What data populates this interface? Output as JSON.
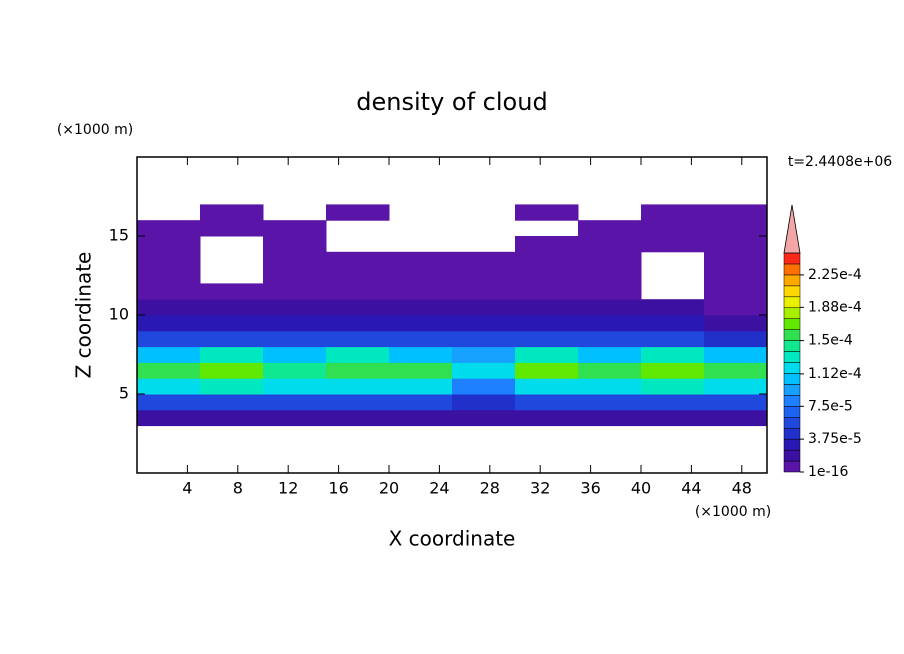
{
  "chart_data": {
    "type": "contour",
    "title": "density of cloud",
    "x_label": "X coordinate",
    "y_label": "Z coordinate",
    "x_unit": "(×1000 m)",
    "y_unit": "(×1000 m)",
    "annotation": "t=2.4408e+06",
    "xlim": [
      0,
      50
    ],
    "ylim": [
      0,
      20
    ],
    "xticks": [
      4,
      8,
      12,
      16,
      20,
      24,
      28,
      32,
      36,
      40,
      44,
      48
    ],
    "yticks": [
      5,
      10,
      15
    ],
    "x": [
      2.5,
      7.5,
      12.5,
      17.5,
      22.5,
      27.5,
      32.5,
      37.5,
      42.5,
      47.5
    ],
    "y": [
      0.5,
      1.5,
      2.5,
      3.5,
      4.5,
      5.5,
      6.5,
      7.5,
      8.5,
      9.5,
      10.5,
      11.5,
      12.5,
      13.5,
      14.5,
      15.5,
      16.5,
      17.5,
      18.5,
      19.5
    ],
    "values": [
      [
        null,
        null,
        null,
        null,
        null,
        null,
        null,
        null,
        null,
        null
      ],
      [
        null,
        null,
        null,
        null,
        null,
        null,
        null,
        null,
        null,
        null
      ],
      [
        null,
        null,
        null,
        null,
        null,
        null,
        null,
        null,
        null,
        null
      ],
      [
        2e-05,
        2e-05,
        2e-05,
        2e-05,
        2e-05,
        2e-05,
        2e-05,
        2e-05,
        2e-05,
        2e-05
      ],
      [
        6e-05,
        6e-05,
        6e-05,
        6e-05,
        6e-05,
        4e-05,
        6e-05,
        6e-05,
        6e-05,
        6e-05
      ],
      [
        0.00012,
        0.00013,
        0.00012,
        0.00012,
        0.00012,
        8e-05,
        0.00012,
        0.00012,
        0.00013,
        0.00012
      ],
      [
        0.00016,
        0.000165,
        0.00014,
        0.00016,
        0.000155,
        0.00012,
        0.000165,
        0.00015,
        0.000165,
        0.000155
      ],
      [
        0.00011,
        0.00013,
        0.0001,
        0.00013,
        0.00011,
        9e-05,
        0.00013,
        0.00011,
        0.00013,
        0.0001
      ],
      [
        5e-05,
        5e-05,
        5e-05,
        5e-05,
        5e-05,
        5e-05,
        5e-05,
        5e-05,
        5e-05,
        4e-05
      ],
      [
        3e-05,
        3e-05,
        3e-05,
        3e-05,
        3e-05,
        3e-05,
        3e-05,
        3e-05,
        3e-05,
        2e-05
      ],
      [
        2e-05,
        2e-05,
        2e-05,
        1.5e-05,
        1.5e-05,
        2e-05,
        2e-05,
        1.5e-05,
        1.5e-05,
        1e-05
      ],
      [
        1e-05,
        1e-05,
        8e-06,
        8e-06,
        8e-06,
        8e-06,
        8e-06,
        8e-06,
        null,
        5e-06
      ],
      [
        5e-06,
        null,
        4e-06,
        4e-06,
        4e-06,
        4e-06,
        4e-06,
        3e-06,
        null,
        3e-06
      ],
      [
        2e-06,
        null,
        2e-06,
        2e-06,
        2e-06,
        2e-06,
        2e-06,
        2e-06,
        null,
        2e-06
      ],
      [
        1e-06,
        null,
        1e-06,
        null,
        null,
        null,
        1e-06,
        1e-06,
        1e-06,
        1e-06
      ],
      [
        1e-06,
        1e-06,
        1e-06,
        null,
        null,
        null,
        null,
        1e-06,
        1e-06,
        1e-06
      ],
      [
        null,
        1e-06,
        null,
        1e-06,
        null,
        null,
        1e-06,
        null,
        1e-06,
        1e-06
      ],
      [
        null,
        null,
        null,
        null,
        null,
        null,
        null,
        null,
        null,
        null
      ],
      [
        null,
        null,
        null,
        null,
        null,
        null,
        null,
        null,
        null,
        null
      ],
      [
        null,
        null,
        null,
        null,
        null,
        null,
        null,
        null,
        null,
        null
      ]
    ],
    "levels": [
      1e-16,
      1.25e-05,
      2.5e-05,
      3.75e-05,
      5e-05,
      6.25e-05,
      7.5e-05,
      8.75e-05,
      0.0001,
      0.0001125,
      0.000125,
      0.0001375,
      0.00015,
      0.0001625,
      0.000175,
      0.0001875,
      0.0002,
      0.0002125,
      0.000225,
      0.0002375,
      0.00025
    ],
    "colors": [
      "#5a14a8",
      "#3c10a0",
      "#2a18b4",
      "#2030c8",
      "#2048dc",
      "#1e62f0",
      "#1e80ff",
      "#16a0ff",
      "#00c0ff",
      "#00dcec",
      "#00e8c0",
      "#10e890",
      "#30e050",
      "#60e800",
      "#a8f000",
      "#e8f000",
      "#ffd800",
      "#ffa800",
      "#ff7000",
      "#ff2818"
    ],
    "extend_color": "#f4a6a6",
    "cticks": [
      {
        "value": 1e-16,
        "label": "1e-16"
      },
      {
        "value": 3.75e-05,
        "label": "3.75e-5"
      },
      {
        "value": 7.5e-05,
        "label": "7.5e-5"
      },
      {
        "value": 0.000112,
        "label": "1.12e-4"
      },
      {
        "value": 0.00015,
        "label": "1.5e-4"
      },
      {
        "value": 0.000188,
        "label": "1.88e-4"
      },
      {
        "value": 0.000225,
        "label": "2.25e-4"
      }
    ]
  }
}
